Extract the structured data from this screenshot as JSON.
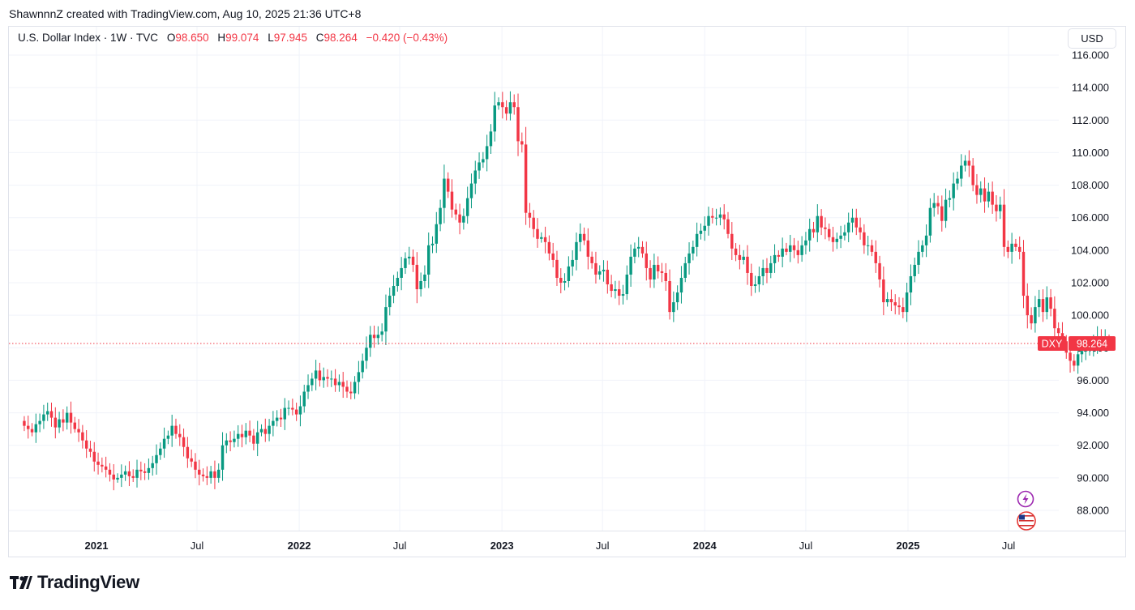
{
  "header": {
    "attribution": "ShawnnnZ created with TradingView.com, Aug 10, 2025 21:36 UTC+8"
  },
  "legend": {
    "symbol": "U.S. Dollar Index · 1W · TVC",
    "open_label": "O",
    "open": "98.650",
    "high_label": "H",
    "high": "99.074",
    "low_label": "L",
    "low": "97.945",
    "close_label": "C",
    "close": "98.264",
    "change": "−0.420 (−0.43%)"
  },
  "currency_button": "USD",
  "price_tag": {
    "ticker": "DXY",
    "value": "98.264"
  },
  "footer": {
    "brand": "TradingView"
  },
  "colors": {
    "up": "#089981",
    "down": "#f23645",
    "grid": "#f0f3fa",
    "text": "#131722",
    "event_flash": "#9c27b0"
  },
  "icons": [
    "flash-event-icon",
    "us-flag-icon",
    "tradingview-logo-icon"
  ],
  "chart_data": {
    "type": "candlestick",
    "interval": "1W",
    "y_axis": {
      "min": 86.2,
      "max": 116.5,
      "ticks": [
        88,
        90,
        92,
        94,
        96,
        98,
        100,
        102,
        104,
        106,
        108,
        110,
        112,
        114,
        116
      ],
      "position": "right"
    },
    "x_axis": {
      "ticks": [
        {
          "label": "2021",
          "date": "2021-01-01",
          "bold": true
        },
        {
          "label": "Jul",
          "date": "2021-07-01",
          "bold": false
        },
        {
          "label": "2022",
          "date": "2022-01-01",
          "bold": true
        },
        {
          "label": "Jul",
          "date": "2022-07-01",
          "bold": false
        },
        {
          "label": "2023",
          "date": "2023-01-01",
          "bold": true
        },
        {
          "label": "Jul",
          "date": "2023-07-01",
          "bold": false
        },
        {
          "label": "2024",
          "date": "2024-01-01",
          "bold": true
        },
        {
          "label": "Jul",
          "date": "2024-07-01",
          "bold": false
        },
        {
          "label": "2025",
          "date": "2025-01-01",
          "bold": true
        },
        {
          "label": "Jul",
          "date": "2025-07-01",
          "bold": false
        }
      ]
    },
    "grid": true,
    "last_price_line": 98.264,
    "closes_start_date": "2020-08-24",
    "closes": [
      93.2,
      93.0,
      92.8,
      93.3,
      93.5,
      93.9,
      94.1,
      93.7,
      93.1,
      93.6,
      93.4,
      94.0,
      93.4,
      93.0,
      92.8,
      92.3,
      91.8,
      91.6,
      91.0,
      90.8,
      90.7,
      90.5,
      90.2,
      89.9,
      90.0,
      90.2,
      90.4,
      90.1,
      90.0,
      90.5,
      90.4,
      90.3,
      90.6,
      90.9,
      91.4,
      91.8,
      92.4,
      92.6,
      93.2,
      92.7,
      92.5,
      91.9,
      91.2,
      91.0,
      90.5,
      90.2,
      90.1,
      90.0,
      90.4,
      90.0,
      90.5,
      92.0,
      92.3,
      92.2,
      92.4,
      92.7,
      92.5,
      92.9,
      92.6,
      92.1,
      92.8,
      93.0,
      92.7,
      93.2,
      93.5,
      93.7,
      93.6,
      94.3,
      94.3,
      94.2,
      93.9,
      94.4,
      95.3,
      95.7,
      96.1,
      96.6,
      96.0,
      96.2,
      96.1,
      96.1,
      95.7,
      95.9,
      95.6,
      95.3,
      95.2,
      95.9,
      96.5,
      97.2,
      98.0,
      98.8,
      98.6,
      98.8,
      99.0,
      100.5,
      101.2,
      101.8,
      102.3,
      102.9,
      103.5,
      103.6,
      103.1,
      101.6,
      102.1,
      102.5,
      104.3,
      104.4,
      105.6,
      106.6,
      108.4,
      107.6,
      106.5,
      106.2,
      105.7,
      106.1,
      107.2,
      108.1,
      108.9,
      109.4,
      109.6,
      110.4,
      111.3,
      112.9,
      113.1,
      112.8,
      112.4,
      113.1,
      112.8,
      110.7,
      110.5,
      106.3,
      106.0,
      105.3,
      104.7,
      104.8,
      104.5,
      103.8,
      103.4,
      102.3,
      102.0,
      102.1,
      103.0,
      103.4,
      104.5,
      105.0,
      104.6,
      103.6,
      103.2,
      102.5,
      102.7,
      102.8,
      101.9,
      101.5,
      101.6,
      101.2,
      101.3,
      102.5,
      103.6,
      104.1,
      104.2,
      103.8,
      102.9,
      102.2,
      103.1,
      102.7,
      102.6,
      102.1,
      100.2,
      100.8,
      101.4,
      102.3,
      103.2,
      103.8,
      104.2,
      105.0,
      105.2,
      105.5,
      106.1,
      106.0,
      106.0,
      106.2,
      105.9,
      105.0,
      104.1,
      103.7,
      103.4,
      103.6,
      102.6,
      101.8,
      101.9,
      102.4,
      102.9,
      102.6,
      103.2,
      103.7,
      103.6,
      104.1,
      103.9,
      104.3,
      104.0,
      103.7,
      104.3,
      104.6,
      105.3,
      105.1,
      106.1,
      105.4,
      105.3,
      104.8,
      104.5,
      104.7,
      104.9,
      105.1,
      105.7,
      106.0,
      105.4,
      105.1,
      104.3,
      104.3,
      103.9,
      103.2,
      102.2,
      100.8,
      101.0,
      100.8,
      100.6,
      100.5,
      100.2,
      101.4,
      102.4,
      103.1,
      103.9,
      104.3,
      104.9,
      106.6,
      106.9,
      106.7,
      105.8,
      107.1,
      107.2,
      108.1,
      108.4,
      109.2,
      109.5,
      109.2,
      108.0,
      107.4,
      107.8,
      107.0,
      107.6,
      106.8,
      106.4,
      106.8,
      104.2,
      103.9,
      104.4,
      104.2,
      103.9,
      101.2,
      100.0,
      99.5,
      100.5,
      101.0,
      100.2,
      101.1,
      100.4,
      99.2,
      98.9,
      98.4,
      97.7,
      97.2,
      96.9,
      97.6,
      97.8,
      97.9,
      97.9,
      98.3,
      98.7,
      98.2,
      98.5,
      98.264
    ]
  }
}
